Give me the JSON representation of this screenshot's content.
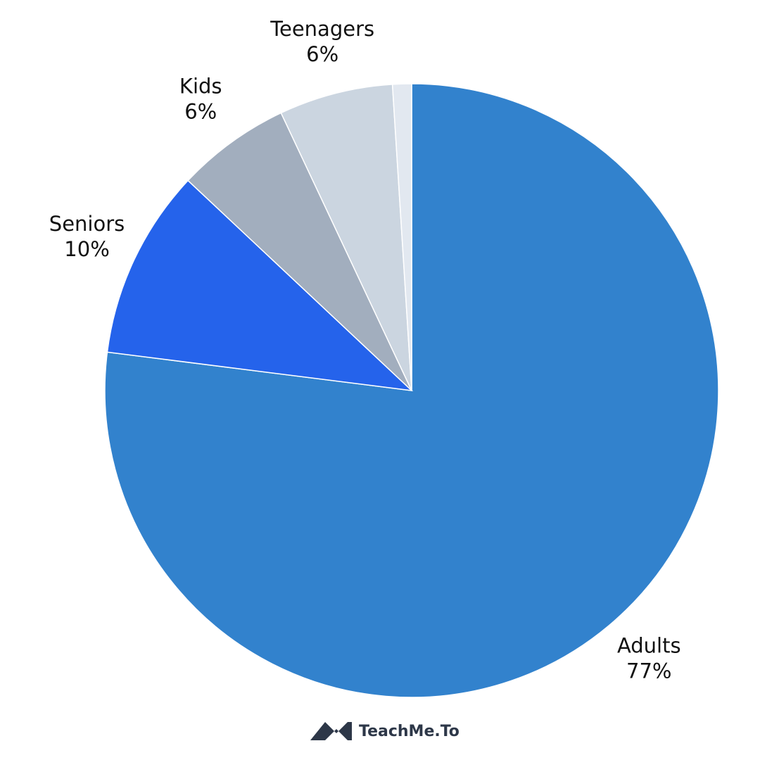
{
  "chart_data": {
    "type": "pie",
    "categories": [
      "Adults",
      "Seniors",
      "Kids",
      "Teenagers",
      null
    ],
    "values": [
      77,
      10,
      6,
      6,
      1
    ],
    "value_labels": [
      "77%",
      "10%",
      "6%",
      "6%",
      null
    ],
    "colors": [
      "#3282cd",
      "#2563eb",
      "#a2aebe",
      "#cbd5e0",
      "#e2e8f0"
    ],
    "start_angle": 0,
    "direction": "clockwise"
  },
  "footer": {
    "logo_text": "TeachMe.To"
  }
}
